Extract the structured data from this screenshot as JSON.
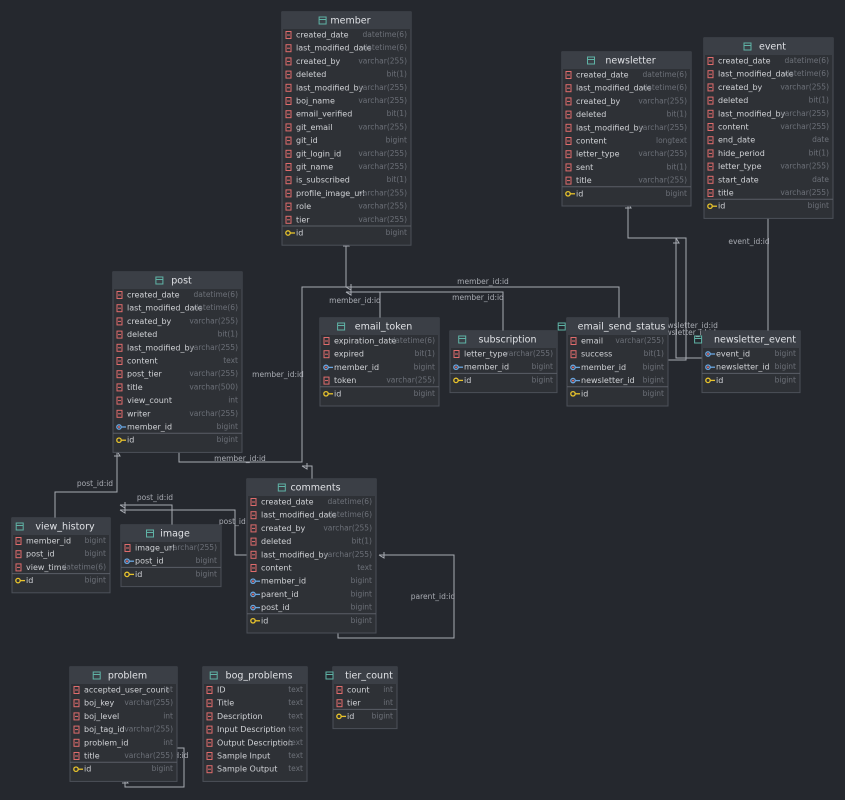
{
  "tables": [
    {
      "name": "member",
      "columns": [
        {
          "name": "created_date",
          "type": "datetime(6)"
        },
        {
          "name": "last_modified_date",
          "type": "datetime(6)"
        },
        {
          "name": "created_by",
          "type": "varchar(255)"
        },
        {
          "name": "deleted",
          "type": "bit(1)"
        },
        {
          "name": "last_modified_by",
          "type": "varchar(255)"
        },
        {
          "name": "boj_name",
          "type": "varchar(255)"
        },
        {
          "name": "email_verified",
          "type": "bit(1)"
        },
        {
          "name": "git_email",
          "type": "varchar(255)"
        },
        {
          "name": "git_id",
          "type": "bigint"
        },
        {
          "name": "git_login_id",
          "type": "varchar(255)"
        },
        {
          "name": "git_name",
          "type": "varchar(255)"
        },
        {
          "name": "is_subscribed",
          "type": "bit(1)"
        },
        {
          "name": "profile_image_url",
          "type": "varchar(255)"
        },
        {
          "name": "role",
          "type": "varchar(255)"
        },
        {
          "name": "tier",
          "type": "varchar(255)"
        }
      ],
      "primary_key": {
        "name": "id",
        "type": "bigint"
      }
    },
    {
      "name": "newsletter",
      "columns": [
        {
          "name": "created_date",
          "type": "datetime(6)"
        },
        {
          "name": "last_modified_date",
          "type": "datetime(6)"
        },
        {
          "name": "created_by",
          "type": "varchar(255)"
        },
        {
          "name": "deleted",
          "type": "bit(1)"
        },
        {
          "name": "last_modified_by",
          "type": "varchar(255)"
        },
        {
          "name": "content",
          "type": "longtext"
        },
        {
          "name": "letter_type",
          "type": "varchar(255)"
        },
        {
          "name": "sent",
          "type": "bit(1)"
        },
        {
          "name": "title",
          "type": "varchar(255)"
        }
      ],
      "primary_key": {
        "name": "id",
        "type": "bigint"
      }
    },
    {
      "name": "event",
      "columns": [
        {
          "name": "created_date",
          "type": "datetime(6)"
        },
        {
          "name": "last_modified_date",
          "type": "datetime(6)"
        },
        {
          "name": "created_by",
          "type": "varchar(255)"
        },
        {
          "name": "deleted",
          "type": "bit(1)"
        },
        {
          "name": "last_modified_by",
          "type": "varchar(255)"
        },
        {
          "name": "content",
          "type": "varchar(255)"
        },
        {
          "name": "end_date",
          "type": "date"
        },
        {
          "name": "hide_period",
          "type": "bit(1)"
        },
        {
          "name": "letter_type",
          "type": "varchar(255)"
        },
        {
          "name": "start_date",
          "type": "date"
        },
        {
          "name": "title",
          "type": "varchar(255)"
        }
      ],
      "primary_key": {
        "name": "id",
        "type": "bigint"
      }
    },
    {
      "name": "post",
      "columns": [
        {
          "name": "created_date",
          "type": "datetime(6)"
        },
        {
          "name": "last_modified_date",
          "type": "datetime(6)"
        },
        {
          "name": "created_by",
          "type": "varchar(255)"
        },
        {
          "name": "deleted",
          "type": "bit(1)"
        },
        {
          "name": "last_modified_by",
          "type": "varchar(255)"
        },
        {
          "name": "content",
          "type": "text"
        },
        {
          "name": "post_tier",
          "type": "varchar(255)"
        },
        {
          "name": "title",
          "type": "varchar(500)"
        },
        {
          "name": "view_count",
          "type": "int"
        },
        {
          "name": "writer",
          "type": "varchar(255)"
        },
        {
          "name": "member_id",
          "type": "bigint"
        }
      ],
      "primary_key": {
        "name": "id",
        "type": "bigint"
      }
    },
    {
      "name": "email_token",
      "columns": [
        {
          "name": "expiration_date",
          "type": "datetime(6)"
        },
        {
          "name": "expired",
          "type": "bit(1)"
        },
        {
          "name": "member_id",
          "type": "bigint"
        },
        {
          "name": "token",
          "type": "varchar(255)"
        }
      ],
      "primary_key": {
        "name": "id",
        "type": "bigint"
      }
    },
    {
      "name": "subscription",
      "columns": [
        {
          "name": "letter_type",
          "type": "varchar(255)"
        },
        {
          "name": "member_id",
          "type": "bigint"
        }
      ],
      "primary_key": {
        "name": "id",
        "type": "bigint"
      }
    },
    {
      "name": "email_send_status",
      "columns": [
        {
          "name": "email",
          "type": "varchar(255)"
        },
        {
          "name": "success",
          "type": "bit(1)"
        },
        {
          "name": "member_id",
          "type": "bigint"
        },
        {
          "name": "newsletter_id",
          "type": "bigint"
        }
      ],
      "primary_key": {
        "name": "id",
        "type": "bigint"
      }
    },
    {
      "name": "newsletter_event",
      "columns": [
        {
          "name": "event_id",
          "type": "bigint"
        },
        {
          "name": "newsletter_id",
          "type": "bigint"
        }
      ],
      "primary_key": {
        "name": "id",
        "type": "bigint"
      }
    },
    {
      "name": "view_history",
      "columns": [
        {
          "name": "member_id",
          "type": "bigint"
        },
        {
          "name": "post_id",
          "type": "bigint"
        },
        {
          "name": "view_time",
          "type": "datetime(6)"
        }
      ],
      "primary_key": {
        "name": "id",
        "type": "bigint"
      }
    },
    {
      "name": "image",
      "columns": [
        {
          "name": "image_url",
          "type": "varchar(255)"
        },
        {
          "name": "post_id",
          "type": "bigint"
        }
      ],
      "primary_key": {
        "name": "id",
        "type": "bigint"
      }
    },
    {
      "name": "comments",
      "columns": [
        {
          "name": "created_date",
          "type": "datetime(6)"
        },
        {
          "name": "last_modified_date",
          "type": "datetime(6)"
        },
        {
          "name": "created_by",
          "type": "varchar(255)"
        },
        {
          "name": "deleted",
          "type": "bit(1)"
        },
        {
          "name": "last_modified_by",
          "type": "varchar(255)"
        },
        {
          "name": "content",
          "type": "text"
        },
        {
          "name": "member_id",
          "type": "bigint"
        },
        {
          "name": "parent_id",
          "type": "bigint"
        },
        {
          "name": "post_id",
          "type": "bigint"
        }
      ],
      "primary_key": {
        "name": "id",
        "type": "bigint"
      }
    },
    {
      "name": "problem",
      "columns": [
        {
          "name": "accepted_user_count",
          "type": "int"
        },
        {
          "name": "boj_key",
          "type": "varchar(255)"
        },
        {
          "name": "boj_level",
          "type": "int"
        },
        {
          "name": "boj_tag_id",
          "type": "varchar(255)"
        },
        {
          "name": "problem_id",
          "type": "int"
        },
        {
          "name": "title",
          "type": "varchar(255)"
        }
      ],
      "primary_key": {
        "name": "id",
        "type": "bigint"
      }
    },
    {
      "name": "bog_problems",
      "columns": [
        {
          "name": "ID",
          "type": "text"
        },
        {
          "name": "Title",
          "type": "text"
        },
        {
          "name": "Description",
          "type": "text"
        },
        {
          "name": "Input Description",
          "type": "text"
        },
        {
          "name": "Output Description",
          "type": "text"
        },
        {
          "name": "Sample Input",
          "type": "text"
        },
        {
          "name": "Sample Output",
          "type": "text"
        }
      ]
    },
    {
      "name": "tier_count",
      "columns": [
        {
          "name": "count",
          "type": "int"
        },
        {
          "name": "tier",
          "type": "int"
        }
      ],
      "primary_key": {
        "name": "id",
        "type": "bigint"
      }
    }
  ],
  "relations": [
    {
      "label": "member_id:id"
    },
    {
      "label": "member_id:id"
    },
    {
      "label": "member_id:id"
    },
    {
      "label": "member_id:id"
    },
    {
      "label": "member_id:id"
    },
    {
      "label": "newsletter_id:id"
    },
    {
      "label": "newsletter_id:id"
    },
    {
      "label": "event_id:id"
    },
    {
      "label": "post_id:id"
    },
    {
      "label": "post_id:id"
    },
    {
      "label": "post_id:id"
    },
    {
      "label": "parent_id:id"
    },
    {
      "label": "problem_id:id"
    }
  ]
}
